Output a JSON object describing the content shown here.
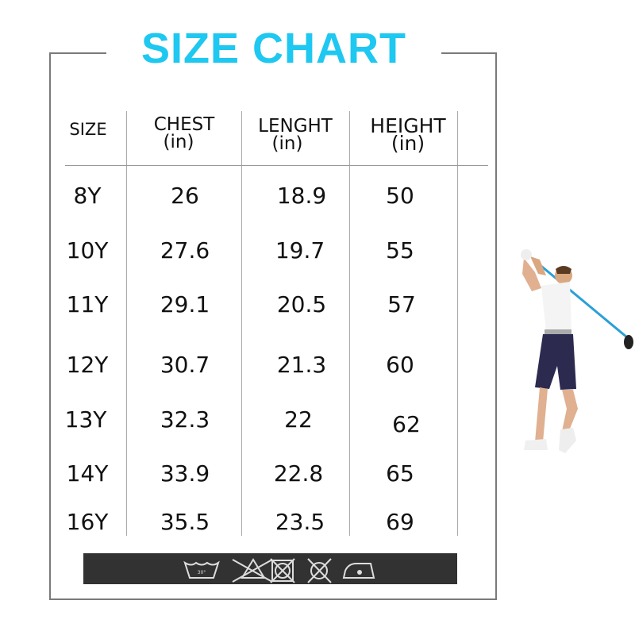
{
  "title": "SIZE CHART",
  "title_color": "#1ec8f0",
  "headers": [
    {
      "label": "SIZE",
      "unit": ""
    },
    {
      "label": "CHEST",
      "unit": "(in)"
    },
    {
      "label": "LENGHT",
      "unit": "(in)"
    },
    {
      "label": "HEIGHT",
      "unit": "(in)"
    }
  ],
  "rows": [
    [
      "8Y",
      "26",
      "18.9",
      "50"
    ],
    [
      "10Y",
      "27.6",
      "19.7",
      "55"
    ],
    [
      "11Y",
      "29.1",
      "20.5",
      "57"
    ],
    [
      "12Y",
      "30.7",
      "21.3",
      "60"
    ],
    [
      "13Y",
      "32.3",
      "22",
      "62"
    ],
    [
      "14Y",
      "33.9",
      "22.8",
      "65"
    ],
    [
      "16Y",
      "35.5",
      "23.5",
      "69"
    ]
  ],
  "care_icons": [
    "wash-30-icon",
    "do-not-bleach-icon",
    "do-not-tumble-dry-icon",
    "do-not-dry-clean-icon",
    "iron-low-icon"
  ],
  "care_bar_color": "#323232",
  "illustration": "golfer-swinging"
}
